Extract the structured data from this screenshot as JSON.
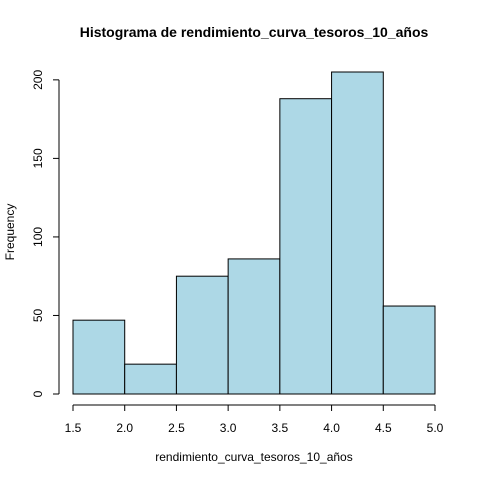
{
  "chart_data": {
    "type": "bar",
    "title": "Histograma de rendimiento_curva_tesoros_10_años",
    "xlabel": "rendimiento_curva_tesoros_10_años",
    "ylabel": "Frequency",
    "bins": [
      {
        "x0": 1.5,
        "x1": 2.0,
        "count": 47
      },
      {
        "x0": 2.0,
        "x1": 2.5,
        "count": 19
      },
      {
        "x0": 2.5,
        "x1": 3.0,
        "count": 75
      },
      {
        "x0": 3.0,
        "x1": 3.5,
        "count": 86
      },
      {
        "x0": 3.5,
        "x1": 4.0,
        "count": 188
      },
      {
        "x0": 4.0,
        "x1": 4.5,
        "count": 205
      },
      {
        "x0": 4.5,
        "x1": 5.0,
        "count": 56
      }
    ],
    "xlim": [
      1.5,
      5.0
    ],
    "ylim": [
      0,
      205
    ],
    "x_ticks": [
      "1.5",
      "2.0",
      "2.5",
      "3.0",
      "3.5",
      "4.0",
      "4.5",
      "5.0"
    ],
    "y_ticks": [
      "0",
      "50",
      "100",
      "150",
      "200"
    ],
    "bar_color": "#add8e6",
    "edge_color": "#000000",
    "grid": false,
    "legend": "none"
  }
}
